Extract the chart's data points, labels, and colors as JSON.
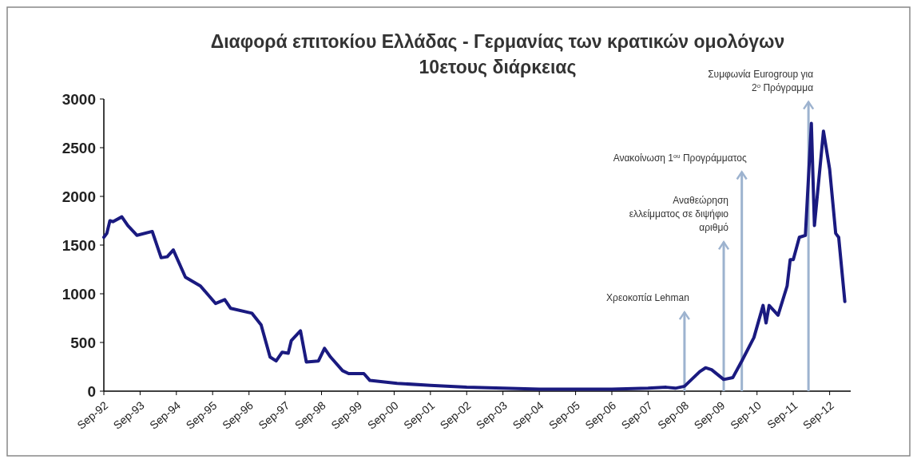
{
  "chart_data": {
    "type": "line",
    "title": "Διαφορά επιτοκίου Ελλάδας - Γερμανίας των κρατικών ομολόγων\n10ετους διάρκειας",
    "x": [
      "1992-09",
      "1992-10",
      "1992-11",
      "1992-12",
      "1993-03",
      "1993-05",
      "1993-08",
      "1994-01",
      "1994-04",
      "1994-06",
      "1994-08",
      "1994-12",
      "1995-05",
      "1995-10",
      "1996-01",
      "1996-03",
      "1996-10",
      "1997-01",
      "1997-04",
      "1997-06",
      "1997-08",
      "1997-10",
      "1997-11",
      "1998-02",
      "1998-04",
      "1998-08",
      "1998-10",
      "1998-12",
      "1999-04",
      "1999-06",
      "1999-11",
      "2000-01",
      "2000-10",
      "2001-09",
      "2002-09",
      "2003-09",
      "2004-09",
      "2005-09",
      "2006-09",
      "2007-09",
      "2008-03",
      "2008-06",
      "2008-09",
      "2009-02",
      "2009-04",
      "2009-06",
      "2009-10",
      "2010-01",
      "2010-04",
      "2010-08",
      "2010-11",
      "2010-12",
      "2011-01",
      "2011-04",
      "2011-07",
      "2011-08",
      "2011-09",
      "2011-11",
      "2012-01",
      "2012-03",
      "2012-04",
      "2012-07",
      "2012-09",
      "2012-11",
      "2012-12",
      "2013-02"
    ],
    "series": [
      {
        "color": "#1a1a80",
        "values": [
          1580,
          1620,
          1750,
          1740,
          1790,
          1700,
          1600,
          1640,
          1370,
          1380,
          1450,
          1170,
          1080,
          900,
          940,
          850,
          800,
          680,
          350,
          310,
          400,
          390,
          520,
          620,
          300,
          310,
          440,
          350,
          210,
          180,
          180,
          110,
          80,
          60,
          40,
          30,
          20,
          20,
          20,
          30,
          40,
          30,
          50,
          200,
          240,
          220,
          120,
          140,
          310,
          550,
          880,
          700,
          880,
          780,
          1080,
          1350,
          1350,
          1580,
          1600,
          2750,
          1700,
          2670,
          2280,
          1620,
          1580,
          920
        ]
      }
    ],
    "xlim": [
      "1992-09",
      "2013-04"
    ],
    "xticks": [
      {
        "value": "1992-09",
        "label": "Sep-92"
      },
      {
        "value": "1993-09",
        "label": "Sep-93"
      },
      {
        "value": "1994-09",
        "label": "Sep-94"
      },
      {
        "value": "1995-09",
        "label": "Sep-95"
      },
      {
        "value": "1996-09",
        "label": "Sep-96"
      },
      {
        "value": "1997-09",
        "label": "Sep-97"
      },
      {
        "value": "1998-09",
        "label": "Sep-98"
      },
      {
        "value": "1999-09",
        "label": "Sep-99"
      },
      {
        "value": "2000-09",
        "label": "Sep-00"
      },
      {
        "value": "2001-09",
        "label": "Sep-01"
      },
      {
        "value": "2002-09",
        "label": "Sep-02"
      },
      {
        "value": "2003-09",
        "label": "Sep-03"
      },
      {
        "value": "2004-09",
        "label": "Sep-04"
      },
      {
        "value": "2005-09",
        "label": "Sep-05"
      },
      {
        "value": "2006-09",
        "label": "Sep-06"
      },
      {
        "value": "2007-09",
        "label": "Sep-07"
      },
      {
        "value": "2008-09",
        "label": "Sep-08"
      },
      {
        "value": "2009-09",
        "label": "Sep-09"
      },
      {
        "value": "2010-09",
        "label": "Sep-10"
      },
      {
        "value": "2011-09",
        "label": "Sep-11"
      },
      {
        "value": "2012-09",
        "label": "Sep-12"
      }
    ],
    "ylim": [
      0,
      3000
    ],
    "yticks": [
      0,
      500,
      1000,
      1500,
      2000,
      2500,
      3000
    ],
    "grid": false,
    "line_style": "solid",
    "ref_lines": [
      {
        "axis": "x",
        "value": "2008-09",
        "label": "Χρεοκοπία Lehman",
        "color": "#9db3cf"
      },
      {
        "axis": "x",
        "value": "2009-10",
        "label": "Αναθεώρηση\nελλείμματος σε διψήφιο\nαριθμό",
        "color": "#9db3cf"
      },
      {
        "axis": "x",
        "value": "2010-04",
        "label": "Ανακοίνωση 1$^{ου}$ Προγράμματος",
        "color": "#9db3cf"
      },
      {
        "axis": "x",
        "value": "2012-02",
        "label": "Συμφωνία Eurogroup για\n2$^{ο}$ Πρόγραμμα",
        "color": "#9db3cf"
      }
    ]
  }
}
